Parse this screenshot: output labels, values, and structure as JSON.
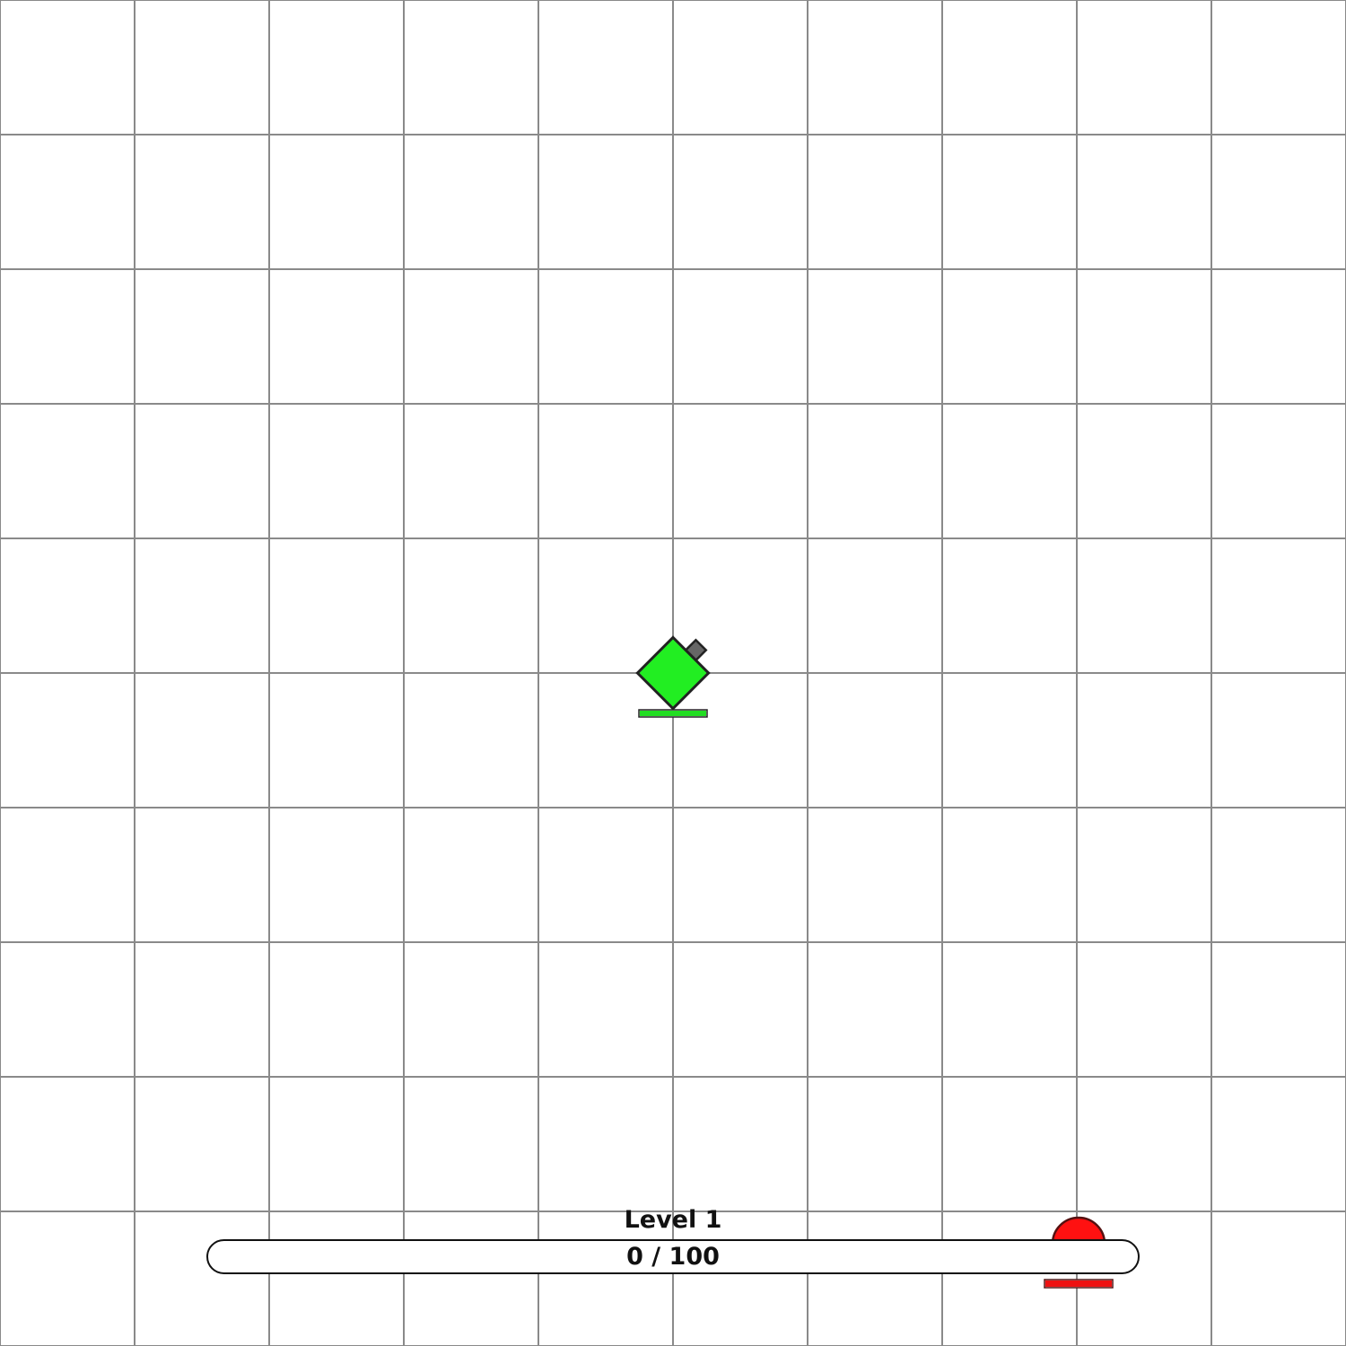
{
  "game": {
    "background_color": "#ffffff",
    "grid_color": "#8a8a8a"
  },
  "player": {
    "body_color": "#22ee22",
    "outline_color": "#222222",
    "barrel_color": "#666666",
    "health": 1.0,
    "health_color": "#22dd22"
  },
  "enemy": {
    "body_color": "#ff1111",
    "health": 1.0,
    "health_color": "#ee1111"
  },
  "hud": {
    "level_label": "Level 1",
    "xp_text": "0 / 100",
    "xp_current": 0,
    "xp_max": 100
  }
}
